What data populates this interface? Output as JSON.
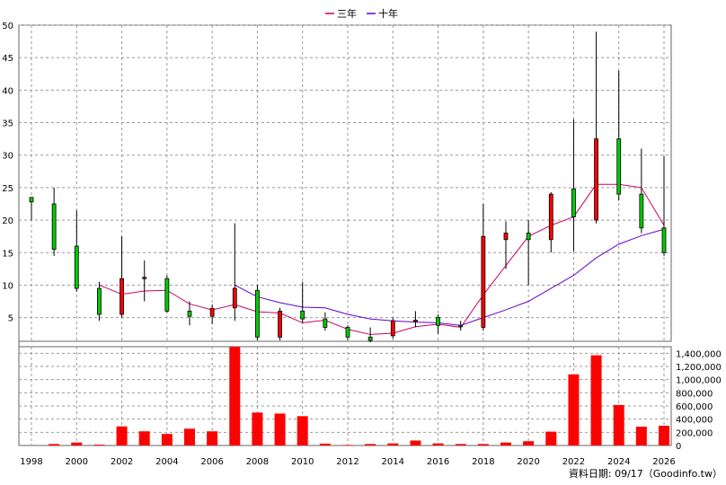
{
  "chart_data": {
    "type": "candlestick",
    "legend": [
      {
        "name": "三年",
        "color": "#cc0066"
      },
      {
        "name": "十年",
        "color": "#6600cc"
      }
    ],
    "x_ticks": [
      "1998",
      "2000",
      "2002",
      "2004",
      "2006",
      "2008",
      "2010",
      "2012",
      "2014",
      "2016",
      "2018",
      "2020",
      "2022",
      "2024",
      "2026"
    ],
    "price_axis": {
      "ylim": [
        0,
        50
      ],
      "ticks": [
        5,
        10,
        15,
        20,
        25,
        30,
        35,
        40,
        45,
        50
      ]
    },
    "volume_axis": {
      "ylim": [
        0,
        1500000
      ],
      "ticks": [
        0,
        200000,
        400000,
        600000,
        800000,
        1000000,
        1200000,
        1400000
      ],
      "tick_labels": [
        "0",
        "200,000",
        "400,000",
        "600,000",
        "800,000",
        "1,000,000",
        "1,200,000",
        "1,400,000"
      ]
    },
    "candles": [
      {
        "year": 1998,
        "open": 22.8,
        "close": 23.5,
        "high": 23.5,
        "low": 20.0,
        "color": "green"
      },
      {
        "year": 1999,
        "open": 22.5,
        "close": 15.5,
        "high": 25.0,
        "low": 14.5,
        "color": "green"
      },
      {
        "year": 2000,
        "open": 16.0,
        "close": 9.5,
        "high": 21.5,
        "low": 9.0,
        "color": "green"
      },
      {
        "year": 2001,
        "open": 9.5,
        "close": 5.5,
        "high": 10.5,
        "low": 4.5,
        "color": "green"
      },
      {
        "year": 2002,
        "open": 5.5,
        "close": 11.0,
        "high": 17.5,
        "low": 5.0,
        "color": "red"
      },
      {
        "year": 2003,
        "open": 11.0,
        "close": 11.2,
        "high": 13.8,
        "low": 7.5,
        "color": "red"
      },
      {
        "year": 2004,
        "open": 11.0,
        "close": 6.0,
        "high": 11.5,
        "low": 5.8,
        "color": "green"
      },
      {
        "year": 2005,
        "open": 6.0,
        "close": 5.2,
        "high": 7.5,
        "low": 3.8,
        "color": "green"
      },
      {
        "year": 2006,
        "open": 5.2,
        "close": 6.4,
        "high": 7.0,
        "low": 4.0,
        "color": "red"
      },
      {
        "year": 2007,
        "open": 6.5,
        "close": 9.5,
        "high": 19.5,
        "low": 4.5,
        "color": "red"
      },
      {
        "year": 2008,
        "open": 9.2,
        "close": 2.0,
        "high": 10.0,
        "low": 1.5,
        "color": "green"
      },
      {
        "year": 2009,
        "open": 2.0,
        "close": 6.0,
        "high": 6.5,
        "low": 1.5,
        "color": "red"
      },
      {
        "year": 2010,
        "open": 6.0,
        "close": 4.8,
        "high": 10.5,
        "low": 4.2,
        "color": "green"
      },
      {
        "year": 2011,
        "open": 4.8,
        "close": 3.5,
        "high": 5.8,
        "low": 3.0,
        "color": "green"
      },
      {
        "year": 2012,
        "open": 3.5,
        "close": 2.0,
        "high": 3.8,
        "low": 1.5,
        "color": "green"
      },
      {
        "year": 2013,
        "open": 2.0,
        "close": 1.5,
        "high": 3.5,
        "low": 1.2,
        "color": "green"
      },
      {
        "year": 2014,
        "open": 2.2,
        "close": 4.5,
        "high": 5.0,
        "low": 1.8,
        "color": "red"
      },
      {
        "year": 2015,
        "open": 4.5,
        "close": 4.6,
        "high": 6.0,
        "low": 3.5,
        "color": "red"
      },
      {
        "year": 2016,
        "open": 5.0,
        "close": 3.8,
        "high": 5.5,
        "low": 2.5,
        "color": "green"
      },
      {
        "year": 2017,
        "open": 3.8,
        "close": 3.6,
        "high": 4.5,
        "low": 3.0,
        "color": "green"
      },
      {
        "year": 2018,
        "open": 3.5,
        "close": 17.5,
        "high": 22.5,
        "low": 3.0,
        "color": "red"
      },
      {
        "year": 2019,
        "open": 17.0,
        "close": 18.0,
        "high": 19.8,
        "low": 12.5,
        "color": "red"
      },
      {
        "year": 2020,
        "open": 18.0,
        "close": 17.0,
        "high": 20.0,
        "low": 10.0,
        "color": "green"
      },
      {
        "year": 2021,
        "open": 17.0,
        "close": 24.0,
        "high": 24.3,
        "low": 15.0,
        "color": "red"
      },
      {
        "year": 2022,
        "open": 24.8,
        "close": 20.5,
        "high": 35.5,
        "low": 15.2,
        "color": "green"
      },
      {
        "year": 2023,
        "open": 20.0,
        "close": 32.5,
        "high": 49.0,
        "low": 19.5,
        "color": "red"
      },
      {
        "year": 2024,
        "open": 32.5,
        "close": 24.0,
        "high": 43.0,
        "low": 23.0,
        "color": "green"
      },
      {
        "year": 2025,
        "open": 24.0,
        "close": 18.8,
        "high": 31.0,
        "low": 18.0,
        "color": "green"
      },
      {
        "year": 2026,
        "open": 18.8,
        "close": 15.0,
        "high": 29.8,
        "low": 14.5,
        "color": "green"
      }
    ],
    "ma3": {
      "x": [
        2001,
        2002,
        2003,
        2004,
        2005,
        2006,
        2007,
        2008,
        2009,
        2010,
        2011,
        2012,
        2013,
        2014,
        2015,
        2016,
        2017,
        2018,
        2019,
        2020,
        2021,
        2022,
        2023,
        2024,
        2025,
        2026
      ],
      "y": [
        10.0,
        8.6,
        9.1,
        9.2,
        7.1,
        6.2,
        7.0,
        5.9,
        5.7,
        4.2,
        4.6,
        3.2,
        2.4,
        2.6,
        3.6,
        4.0,
        3.5,
        8.5,
        13.0,
        17.5,
        19.2,
        20.5,
        25.5,
        25.5,
        25.0,
        19.2
      ]
    },
    "ma10": {
      "x": [
        2007,
        2008,
        2009,
        2010,
        2011,
        2012,
        2013,
        2014,
        2015,
        2016,
        2017,
        2018,
        2019,
        2020,
        2021,
        2022,
        2023,
        2024,
        2025,
        2026
      ],
      "y": [
        10.0,
        8.2,
        7.3,
        6.6,
        6.5,
        5.5,
        4.8,
        4.5,
        4.3,
        4.2,
        3.8,
        5.0,
        6.2,
        7.5,
        9.5,
        11.5,
        14.2,
        16.3,
        17.6,
        18.6
      ]
    },
    "volume": [
      {
        "year": 1998,
        "value": 0
      },
      {
        "year": 1999,
        "value": 22000
      },
      {
        "year": 2000,
        "value": 45000
      },
      {
        "year": 2001,
        "value": 12000
      },
      {
        "year": 2002,
        "value": 290000
      },
      {
        "year": 2003,
        "value": 215000
      },
      {
        "year": 2004,
        "value": 175000
      },
      {
        "year": 2005,
        "value": 255000
      },
      {
        "year": 2006,
        "value": 215000
      },
      {
        "year": 2007,
        "value": 1510000
      },
      {
        "year": 2008,
        "value": 500000
      },
      {
        "year": 2009,
        "value": 485000
      },
      {
        "year": 2010,
        "value": 445000
      },
      {
        "year": 2011,
        "value": 28000
      },
      {
        "year": 2012,
        "value": 8000
      },
      {
        "year": 2013,
        "value": 22000
      },
      {
        "year": 2014,
        "value": 32000
      },
      {
        "year": 2015,
        "value": 75000
      },
      {
        "year": 2016,
        "value": 32000
      },
      {
        "year": 2017,
        "value": 22000
      },
      {
        "year": 2018,
        "value": 22000
      },
      {
        "year": 2019,
        "value": 45000
      },
      {
        "year": 2020,
        "value": 65000
      },
      {
        "year": 2021,
        "value": 210000
      },
      {
        "year": 2022,
        "value": 1080000
      },
      {
        "year": 2023,
        "value": 1370000
      },
      {
        "year": 2024,
        "value": 615000
      },
      {
        "year": 2025,
        "value": 285000
      },
      {
        "year": 2026,
        "value": 300000
      }
    ]
  },
  "colors": {
    "up": "#ff0000",
    "down": "#00cc00",
    "wick": "#000000",
    "volume": "#ff0000",
    "grid": "#999999"
  },
  "footer": {
    "text": "資料日期: 09/17（Goodinfo.tw）"
  }
}
